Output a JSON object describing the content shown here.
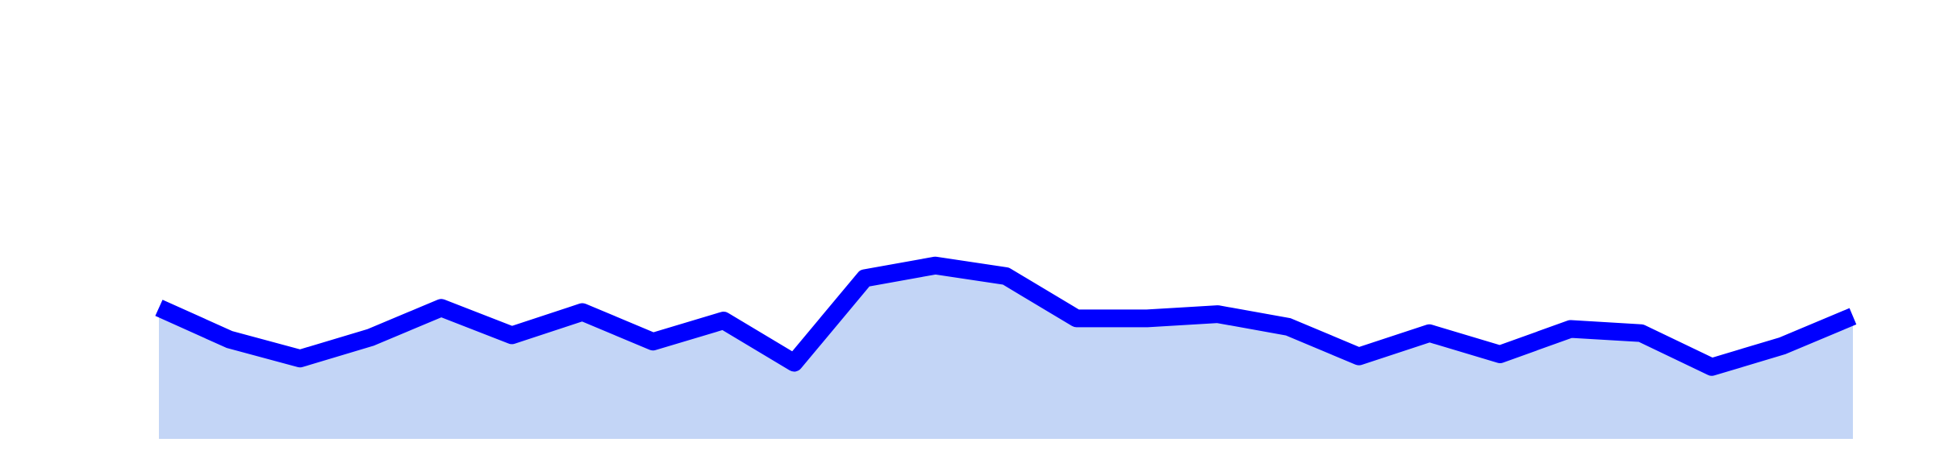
{
  "chart_data": {
    "type": "area",
    "x": [
      1,
      2,
      3,
      4,
      5,
      6,
      7,
      8,
      9,
      10,
      11,
      12,
      13,
      14,
      15,
      16,
      17,
      18,
      19,
      20,
      21,
      22,
      23,
      24,
      25
    ],
    "values": [
      62,
      47,
      38,
      48,
      62,
      49,
      60,
      46,
      56,
      36,
      76,
      82,
      77,
      57,
      57,
      59,
      53,
      39,
      50,
      40,
      52,
      50,
      34,
      44,
      58
    ],
    "ylim": [
      0,
      200
    ],
    "grid": false,
    "colors": {
      "line": "#0000ff",
      "fill": "#c3d5f6"
    }
  }
}
